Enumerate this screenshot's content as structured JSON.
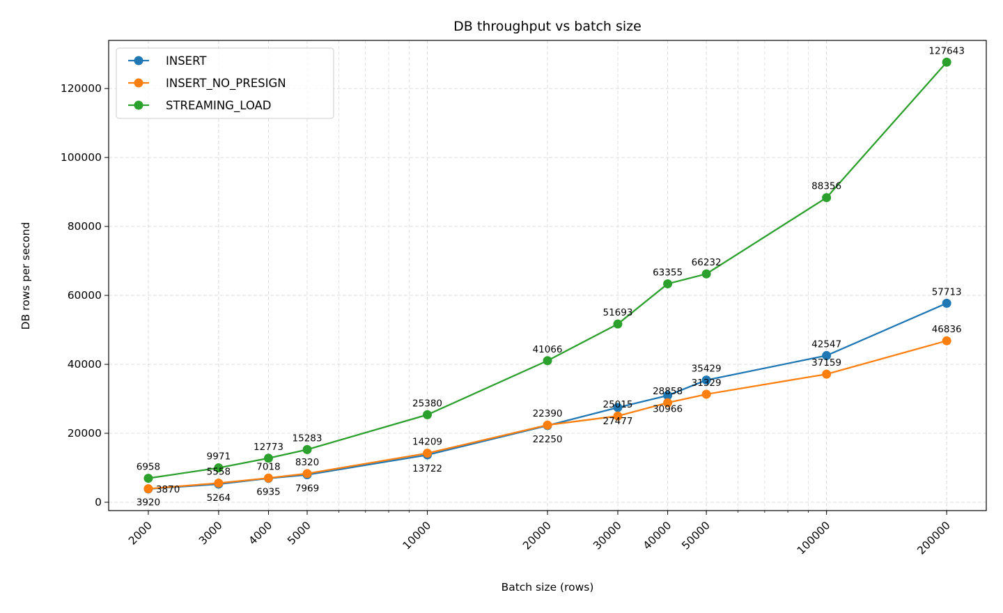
{
  "chart_data": {
    "type": "line",
    "title": "DB throughput vs batch size",
    "xlabel": "Batch size (rows)",
    "ylabel": "DB rows per second",
    "xscale": "log",
    "xlim": [
      1591,
      251300
    ],
    "ylim": [
      -2424,
      133960
    ],
    "grid": true,
    "legend_position": "top-left",
    "x": [
      2000,
      3000,
      4000,
      5000,
      10000,
      20000,
      30000,
      40000,
      50000,
      100000,
      200000
    ],
    "x_tick_labels": [
      "2000",
      "3000",
      "4000",
      "5000",
      "10000",
      "20000",
      "30000",
      "40000",
      "50000",
      "100000",
      "200000"
    ],
    "y_ticks": [
      0,
      20000,
      40000,
      60000,
      80000,
      100000,
      120000
    ],
    "y_tick_labels": [
      "0",
      "20000",
      "40000",
      "60000",
      "80000",
      "100000",
      "120000"
    ],
    "series": [
      {
        "name": "INSERT",
        "color": "#1f77b4",
        "values": [
          3870,
          5264,
          6935,
          7969,
          13722,
          22250,
          27477,
          30966,
          35429,
          42547,
          57713
        ]
      },
      {
        "name": "INSERT_NO_PRESIGN",
        "color": "#ff7f0e",
        "values": [
          3920,
          5558,
          7018,
          8320,
          14209,
          22390,
          25015,
          28858,
          31329,
          37159,
          46836
        ]
      },
      {
        "name": "STREAMING_LOAD",
        "color": "#2ca02c",
        "values": [
          6958,
          9971,
          12773,
          15283,
          25380,
          41066,
          51693,
          63355,
          66232,
          88356,
          127643
        ]
      }
    ]
  }
}
